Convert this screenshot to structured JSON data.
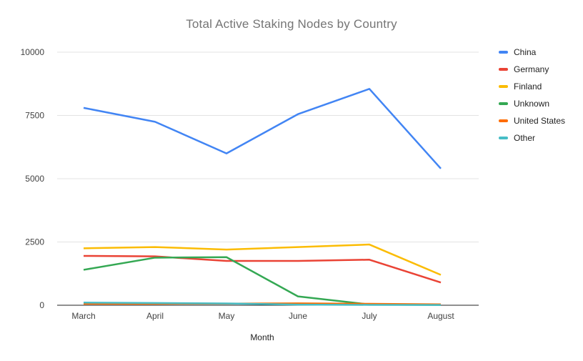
{
  "chart_data": {
    "type": "line",
    "title": "Total Active Staking Nodes by Country",
    "xlabel": "Month",
    "ylabel": "",
    "categories": [
      "March",
      "April",
      "May",
      "June",
      "July",
      "August"
    ],
    "y_ticks": [
      0,
      2500,
      5000,
      7500,
      10000
    ],
    "ylim": [
      0,
      10000
    ],
    "grid": true,
    "legend_position": "right",
    "series": [
      {
        "name": "China",
        "color": "#4285F4",
        "values": [
          7800,
          7250,
          6000,
          7550,
          8550,
          5400
        ]
      },
      {
        "name": "Germany",
        "color": "#EA4335",
        "values": [
          1950,
          1930,
          1750,
          1750,
          1800,
          900
        ]
      },
      {
        "name": "Finland",
        "color": "#FBBC04",
        "values": [
          2250,
          2300,
          2200,
          2300,
          2400,
          1200
        ]
      },
      {
        "name": "Unknown",
        "color": "#34A853",
        "values": [
          1400,
          1880,
          1900,
          350,
          30,
          10
        ]
      },
      {
        "name": "United States",
        "color": "#FF6D01",
        "values": [
          60,
          60,
          65,
          75,
          55,
          35
        ]
      },
      {
        "name": "Other",
        "color": "#46BDC6",
        "values": [
          105,
          90,
          70,
          25,
          15,
          10
        ]
      }
    ],
    "colors": {
      "gridline": "#e3e3e3",
      "axis_line": "#212121",
      "title_text": "#757575",
      "tick_text": "#424242"
    }
  }
}
